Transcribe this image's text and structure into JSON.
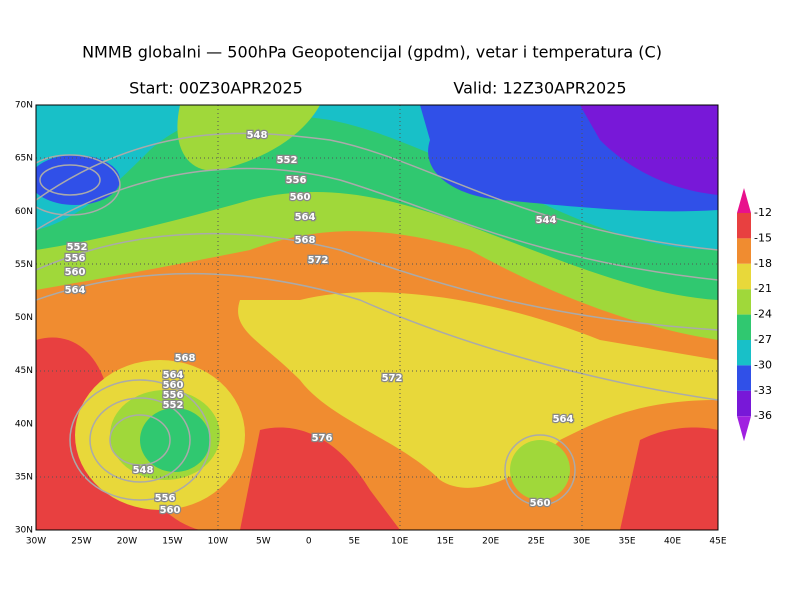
{
  "header": {
    "title": "NMMB globalni — 500hPa Geopotencijal (gpdm), vetar i temperatura (C)",
    "start": "Start: 00Z30APR2025",
    "valid": "Valid: 12Z30APR2025"
  },
  "map": {
    "lat_labels": [
      "30N",
      "35N",
      "40N",
      "45N",
      "50N",
      "55N",
      "60N",
      "65N",
      "70N"
    ],
    "lon_labels": [
      "30W",
      "25W",
      "20W",
      "15W",
      "10W",
      "5W",
      "0",
      "5E",
      "10E",
      "15E",
      "20E",
      "25E",
      "30E",
      "35E",
      "40E",
      "45E"
    ],
    "contour_labels": [
      "548",
      "552",
      "556",
      "560",
      "564",
      "568",
      "572",
      "544",
      "572",
      "576",
      "564",
      "560",
      "568",
      "564",
      "560",
      "556",
      "552",
      "548",
      "556",
      "560",
      "552",
      "556",
      "560",
      "564"
    ]
  },
  "colorbar": {
    "labels": [
      -12,
      -15,
      -18,
      -21,
      -24,
      -27,
      -30,
      -33,
      -36
    ],
    "colors": [
      "#e8108c",
      "#e84040",
      "#f08c30",
      "#e8d83a",
      "#a0d83a",
      "#30c870",
      "#18c0c8",
      "#3050e8",
      "#7818d8",
      "#a020e0"
    ]
  }
}
